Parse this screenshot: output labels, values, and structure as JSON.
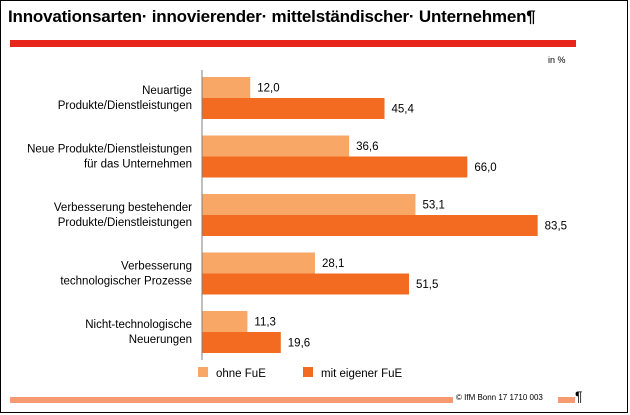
{
  "title": "Innovationsarten· innovierender· mittelständischer· Unternehmen¶",
  "unit": "in %",
  "source": "© IfM Bonn  17  1710 003",
  "trailing_mark": "¶",
  "colors": {
    "rule": "#e8251c",
    "ohne": "#f9a766",
    "mit": "#f26b21",
    "footer": "#f79a72"
  },
  "chart_data": {
    "type": "bar",
    "orientation": "horizontal",
    "xlim": [
      0,
      100
    ],
    "grid": false,
    "legend_position": "bottom",
    "categories": [
      [
        "Neuartige",
        "Produkte/Dienstleistungen"
      ],
      [
        "Neue Produkte/Dienstleistungen",
        "für das Unternehmen"
      ],
      [
        "Verbesserung bestehender",
        "Produkte/Dienstleistungen"
      ],
      [
        "Verbesserung",
        "technologischer Prozesse"
      ],
      [
        "Nicht-technologische",
        "Neuerungen"
      ]
    ],
    "series": [
      {
        "name": "ohne FuE",
        "values": [
          12.0,
          36.6,
          53.1,
          28.1,
          11.3
        ],
        "labels": [
          "12,0",
          "36,6",
          "53,1",
          "28,1",
          "11,3"
        ]
      },
      {
        "name": "mit eigener FuE",
        "values": [
          45.4,
          66.0,
          83.5,
          51.5,
          19.6
        ],
        "labels": [
          "45,4",
          "66,0",
          "83,5",
          "51,5",
          "19,6"
        ]
      }
    ]
  }
}
